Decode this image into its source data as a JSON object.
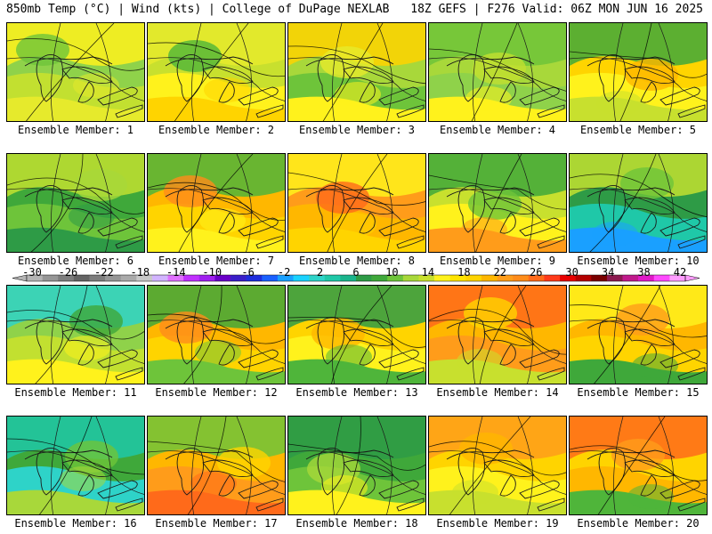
{
  "header": {
    "left": "850mb Temp (°C) | Wind (kts) | College of DuPage NEXLAB",
    "right": "18Z GEFS | F276 Valid: 06Z MON JUN 16 2025"
  },
  "panels": [
    {
      "label": "Ensemble Member: 1",
      "palette": [
        "#8fd24a",
        "#c2e030",
        "#6ec43a",
        "#e6ea2c",
        "#fff21c"
      ]
    },
    {
      "label": "Ensemble Member: 2",
      "palette": [
        "#c8e02e",
        "#fff21c",
        "#4fb53a",
        "#ffd400",
        "#e6ea2c"
      ]
    },
    {
      "label": "Ensemble Member: 3",
      "palette": [
        "#a8d83a",
        "#6ec43a",
        "#e6ea2c",
        "#fff21c",
        "#ffd400"
      ]
    },
    {
      "label": "Ensemble Member: 4",
      "palette": [
        "#a8d83a",
        "#8fd24a",
        "#c2e030",
        "#fff21c",
        "#6ec43a"
      ]
    },
    {
      "label": "Ensemble Member: 5",
      "palette": [
        "#ffd400",
        "#fff21c",
        "#ffb700",
        "#c8e02e",
        "#3fa83a"
      ]
    },
    {
      "label": "Ensemble Member: 6",
      "palette": [
        "#3fa83a",
        "#6ec43a",
        "#a8d83a",
        "#2e9b46",
        "#c2e030"
      ]
    },
    {
      "label": "Ensemble Member: 7",
      "palette": [
        "#ffb700",
        "#ffd400",
        "#ff8c1a",
        "#fff21c",
        "#4fb53a"
      ]
    },
    {
      "label": "Ensemble Member: 8",
      "palette": [
        "#ff9c1a",
        "#ffb700",
        "#ff6a1a",
        "#ffd400",
        "#fff21c"
      ]
    },
    {
      "label": "Ensemble Member: 9",
      "palette": [
        "#c8e02e",
        "#fff21c",
        "#6ec43a",
        "#ff9c1a",
        "#3fa83a"
      ]
    },
    {
      "label": "Ensemble Member: 10",
      "palette": [
        "#2e9b46",
        "#1fc8a8",
        "#6ec43a",
        "#1aa0ff",
        "#c2e030"
      ]
    },
    {
      "label": "Ensemble Member: 11",
      "palette": [
        "#8fd24a",
        "#c2e030",
        "#3fa83a",
        "#fff21c",
        "#2ed3c8"
      ]
    },
    {
      "label": "Ensemble Member: 12",
      "palette": [
        "#ffb700",
        "#ffd400",
        "#ff8c1a",
        "#6ec43a",
        "#3fa83a"
      ]
    },
    {
      "label": "Ensemble Member: 13",
      "palette": [
        "#ffd400",
        "#fff21c",
        "#ffb700",
        "#4fb53a",
        "#2e9b46"
      ]
    },
    {
      "label": "Ensemble Member: 14",
      "palette": [
        "#ffb700",
        "#ff9c1a",
        "#ffd400",
        "#c8e02e",
        "#ff6a1a"
      ]
    },
    {
      "label": "Ensemble Member: 15",
      "palette": [
        "#ffb700",
        "#ffd400",
        "#ff9c1a",
        "#3fa83a",
        "#fff21c"
      ]
    },
    {
      "label": "Ensemble Member: 16",
      "palette": [
        "#3fa83a",
        "#2ed3c8",
        "#6ec43a",
        "#a8d83a",
        "#1fc8a8"
      ]
    },
    {
      "label": "Ensemble Member: 17",
      "palette": [
        "#ffb700",
        "#ff9c1a",
        "#ffd400",
        "#ff6a1a",
        "#6ec43a"
      ]
    },
    {
      "label": "Ensemble Member: 18",
      "palette": [
        "#3fa83a",
        "#6ec43a",
        "#a8d83a",
        "#fff21c",
        "#2e9b46"
      ]
    },
    {
      "label": "Ensemble Member: 19",
      "palette": [
        "#ffd400",
        "#fff21c",
        "#ffb700",
        "#c8e02e",
        "#ff9c1a"
      ]
    },
    {
      "label": "Ensemble Member: 20",
      "palette": [
        "#ffd400",
        "#ffb700",
        "#ff9c1a",
        "#4fb53a",
        "#ff6a1a"
      ]
    }
  ],
  "colorbar": {
    "labels": [
      "-30",
      "-26",
      "-22",
      "-18",
      "-14",
      "-10",
      "-6",
      "-2",
      "2",
      "6",
      "10",
      "14",
      "18",
      "22",
      "26",
      "30",
      "34",
      "38",
      "42"
    ],
    "colors": [
      "#b4b4b4",
      "#969696",
      "#7d7d7d",
      "#646464",
      "#7d7d7d",
      "#969696",
      "#aaaaaa",
      "#c8c8c8",
      "#d2b4ff",
      "#e070ff",
      "#c030ff",
      "#a020f0",
      "#6a00c8",
      "#3a1ec8",
      "#1e2ddc",
      "#1a60ff",
      "#1aa0ff",
      "#1ad2ff",
      "#2ed3c8",
      "#1fc8a8",
      "#1ab48c",
      "#2e9b46",
      "#3fa83a",
      "#6ec43a",
      "#a8d83a",
      "#c8e02e",
      "#fff21c",
      "#ffe400",
      "#ffd400",
      "#ffb700",
      "#ff9c1a",
      "#ff8c1a",
      "#ff6a1a",
      "#ff3a1a",
      "#e80000",
      "#b40000",
      "#7a0000",
      "#8c1a50",
      "#c01a8c",
      "#e01ac8",
      "#ff4aff",
      "#ff9cff"
    ]
  }
}
